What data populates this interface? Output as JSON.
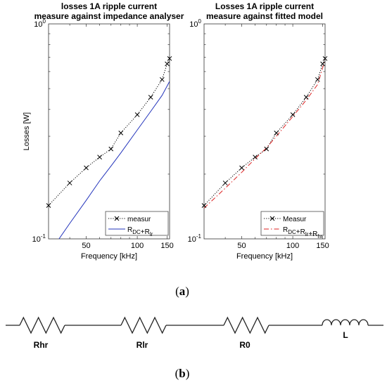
{
  "chart_data": [
    {
      "type": "line",
      "title_line1": "losses 1A ripple current",
      "title_line2": "measure against impedance analyser",
      "xlabel": "Frequency [kHz]",
      "ylabel": "Losses [W]",
      "xscale": "log",
      "yscale": "log",
      "xlim": [
        30,
        155
      ],
      "ylim": [
        0.1,
        1.0
      ],
      "xticks": [
        50,
        100,
        150
      ],
      "yticks": [
        "10^-1",
        "10^0"
      ],
      "legend_position": "bottom-right",
      "series": [
        {
          "name": "measur",
          "style": "dotted-x",
          "color": "#000000",
          "x": [
            30,
            40,
            50,
            60,
            70,
            80,
            100,
            120,
            140,
            150,
            155
          ],
          "y": [
            0.143,
            0.182,
            0.214,
            0.24,
            0.262,
            0.311,
            0.378,
            0.456,
            0.551,
            0.652,
            0.69
          ]
        },
        {
          "name": "R_DC+R_lr",
          "style": "solid",
          "color": "#2233bb",
          "x": [
            30,
            40,
            50,
            60,
            70,
            80,
            100,
            120,
            140,
            155
          ],
          "y": [
            0.085,
            0.118,
            0.151,
            0.186,
            0.218,
            0.251,
            0.321,
            0.392,
            0.465,
            0.54
          ]
        }
      ]
    },
    {
      "type": "line",
      "title_line1": "Losses 1A ripple current",
      "title_line2": "measure against fitted model",
      "xlabel": "Frequency [kHz]",
      "ylabel": "",
      "xscale": "log",
      "yscale": "log",
      "xlim": [
        30,
        155
      ],
      "ylim": [
        0.1,
        1.0
      ],
      "xticks": [
        50,
        100,
        150
      ],
      "yticks": [
        "10^-1",
        "10^0"
      ],
      "legend_position": "bottom-right",
      "series": [
        {
          "name": "Measur",
          "style": "dotted-x",
          "color": "#000000",
          "x": [
            30,
            40,
            50,
            60,
            70,
            80,
            100,
            120,
            140,
            150,
            155
          ],
          "y": [
            0.143,
            0.182,
            0.214,
            0.24,
            0.262,
            0.311,
            0.378,
            0.456,
            0.551,
            0.652,
            0.69
          ]
        },
        {
          "name": "R_DC+R_lr+R_hr",
          "style": "dashdot",
          "color": "#dd2222",
          "x": [
            30,
            40,
            50,
            60,
            70,
            80,
            100,
            120,
            140,
            155
          ],
          "y": [
            0.139,
            0.172,
            0.204,
            0.236,
            0.265,
            0.3,
            0.371,
            0.442,
            0.522,
            0.68
          ]
        }
      ]
    }
  ],
  "subfigure_labels": {
    "a": "(a)",
    "b": "(b)"
  },
  "circuit": {
    "components": [
      {
        "type": "resistor",
        "label": "Rhr"
      },
      {
        "type": "resistor",
        "label": "Rlr"
      },
      {
        "type": "resistor",
        "label": "R0"
      },
      {
        "type": "inductor",
        "label": "L"
      }
    ]
  },
  "colors": {
    "axis": "#333333",
    "text": "#000000",
    "measured": "#000000",
    "model_blue": "#2233bb",
    "model_red": "#dd2222"
  }
}
